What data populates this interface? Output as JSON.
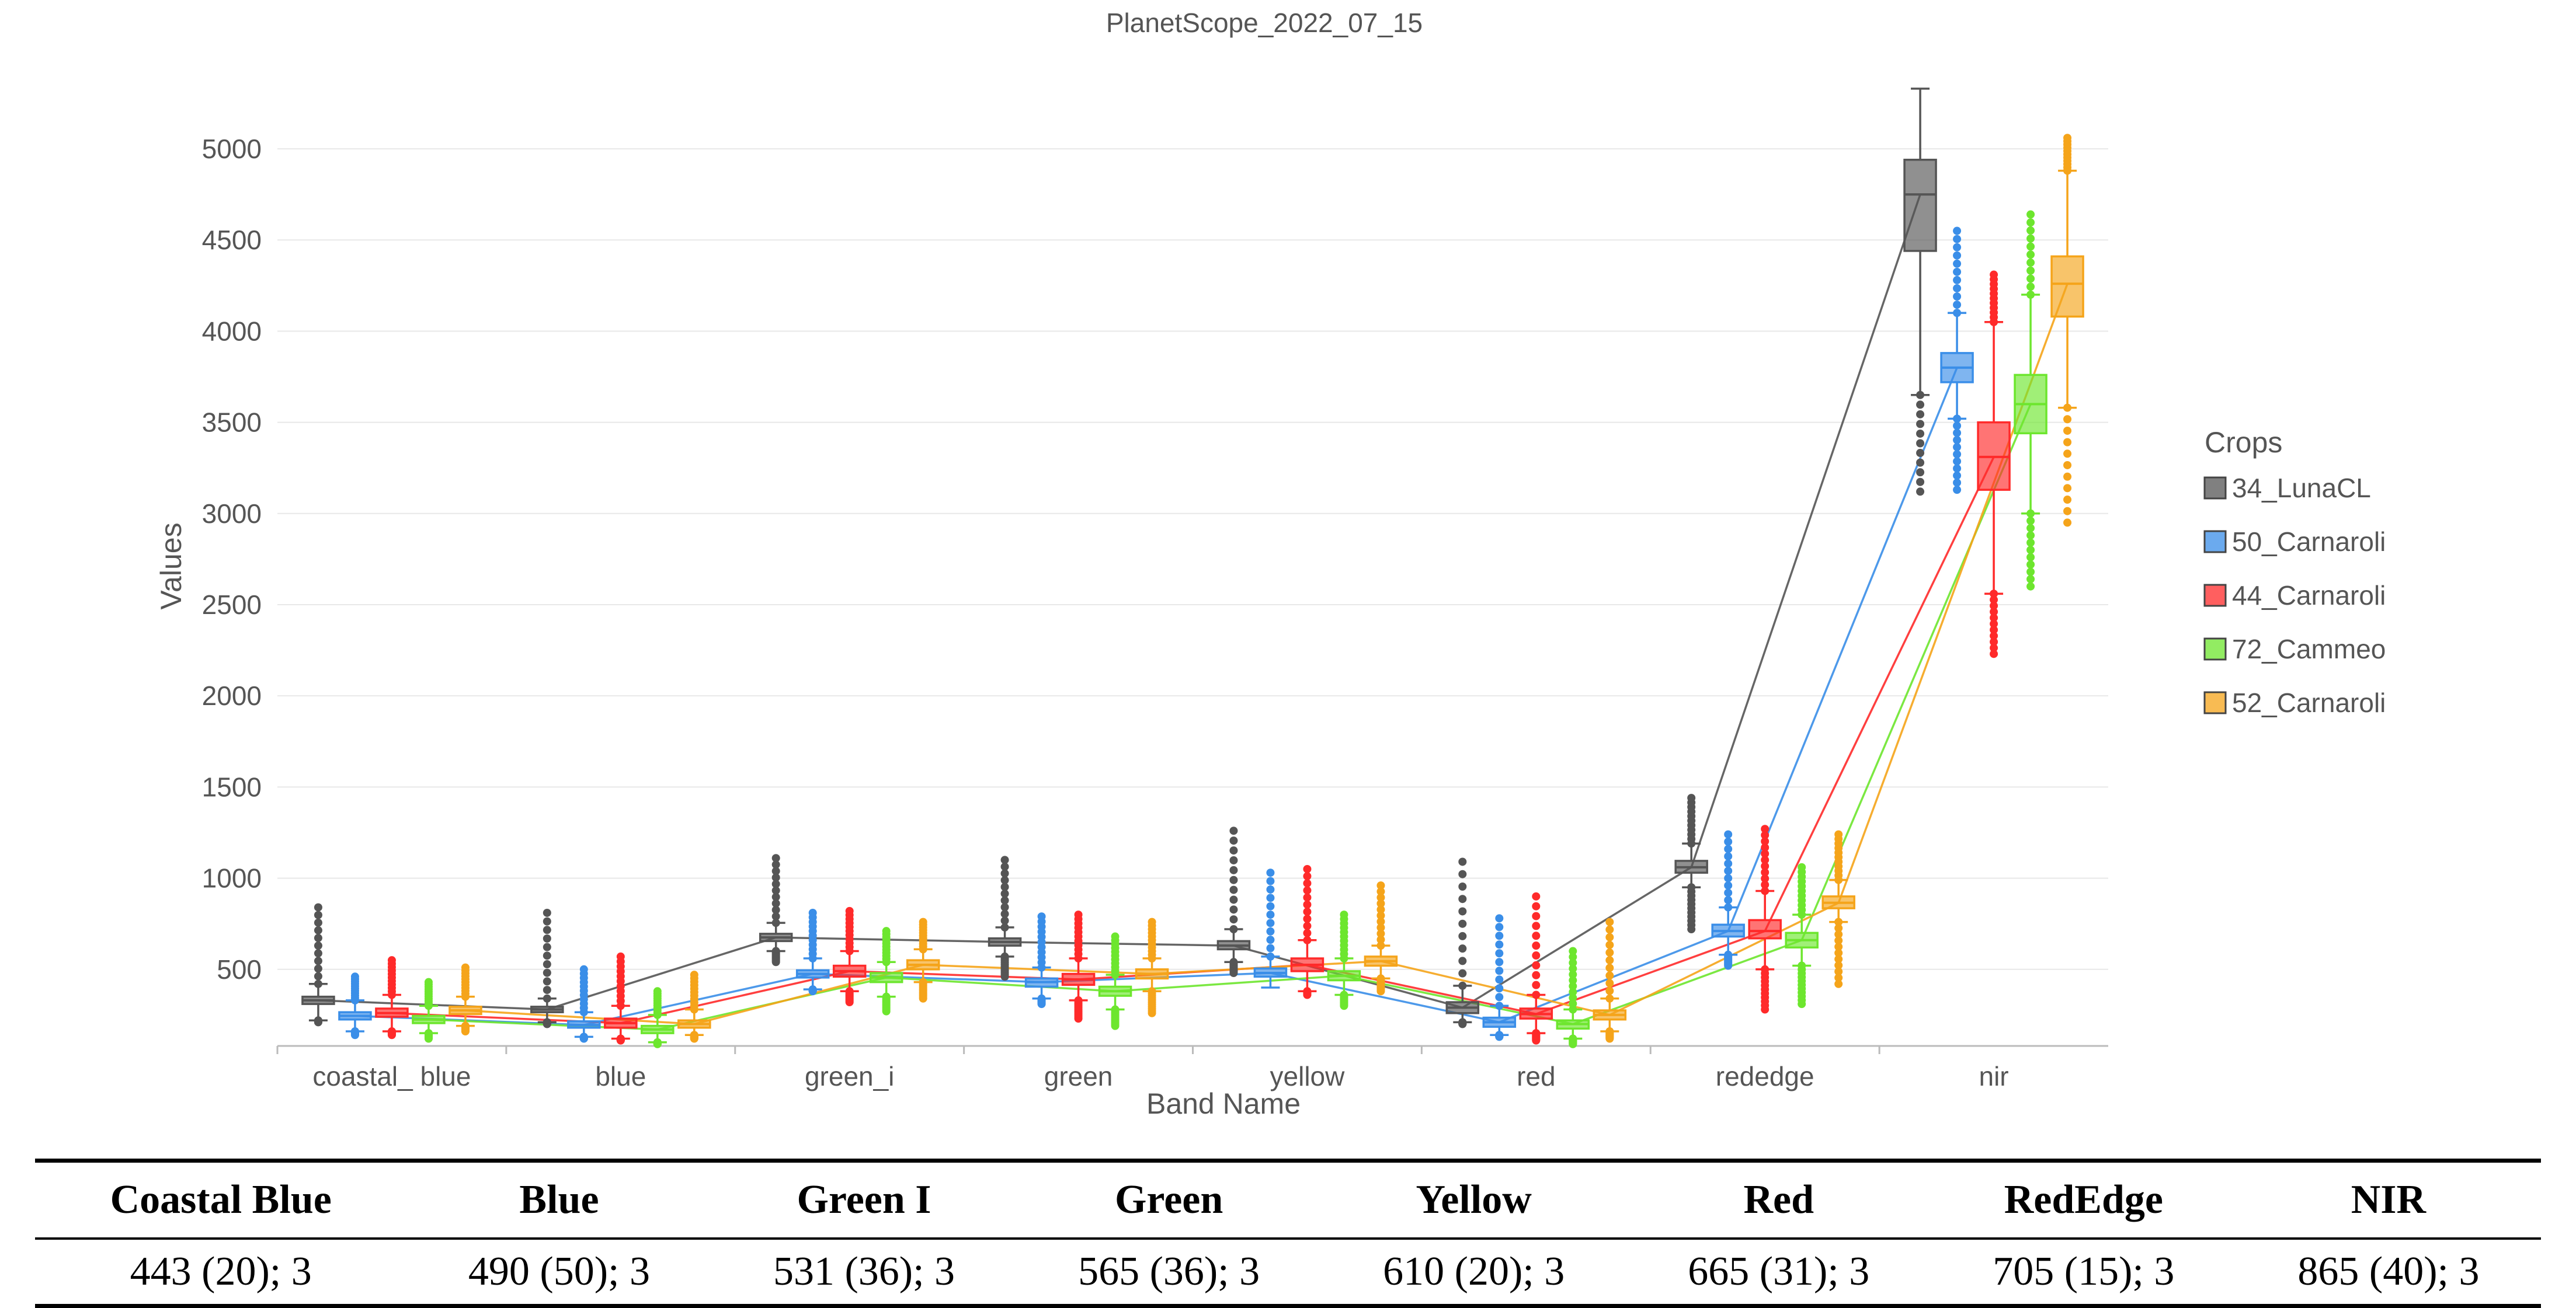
{
  "chart_data": {
    "type": "box",
    "title": "PlanetScope_2022_07_15",
    "xlabel": "Band Name",
    "ylabel": "Values",
    "ylim": [
      80,
      5400
    ],
    "yticks": [
      500,
      1000,
      1500,
      2000,
      2500,
      3000,
      3500,
      4000,
      4500,
      5000
    ],
    "grid": true,
    "legend_title": "Crops",
    "legend_position": "right",
    "categories": [
      "coastal_ blue",
      "blue",
      "green_i",
      "green",
      "yellow",
      "red",
      "rededge",
      "nir"
    ],
    "series": [
      {
        "name": "34_LunaCL",
        "color": "#555555",
        "boxes": [
          {
            "q1": 310,
            "median": 330,
            "q3": 350,
            "lo": 220,
            "hi": 420,
            "out_lo": 210,
            "out_hi": 840
          },
          {
            "q1": 265,
            "median": 280,
            "q3": 295,
            "lo": 210,
            "hi": 340,
            "out_lo": 200,
            "out_hi": 810
          },
          {
            "q1": 655,
            "median": 675,
            "q3": 695,
            "lo": 600,
            "hi": 755,
            "out_lo": 540,
            "out_hi": 1110
          },
          {
            "q1": 630,
            "median": 650,
            "q3": 670,
            "lo": 570,
            "hi": 730,
            "out_lo": 460,
            "out_hi": 1100
          },
          {
            "q1": 610,
            "median": 630,
            "q3": 655,
            "lo": 540,
            "hi": 720,
            "out_lo": 480,
            "out_hi": 1260
          },
          {
            "q1": 260,
            "median": 290,
            "q3": 320,
            "lo": 210,
            "hi": 410,
            "out_lo": 200,
            "out_hi": 1090
          },
          {
            "q1": 1030,
            "median": 1060,
            "q3": 1095,
            "lo": 950,
            "hi": 1190,
            "out_lo": 720,
            "out_hi": 1440
          },
          {
            "q1": 4440,
            "median": 4750,
            "q3": 4940,
            "lo": 3650,
            "hi": 5330,
            "out_lo": 3120,
            "out_hi": 5330
          }
        ]
      },
      {
        "name": "50_Carnaroli",
        "color": "#3a8ee8",
        "boxes": [
          {
            "q1": 225,
            "median": 245,
            "q3": 265,
            "lo": 160,
            "hi": 330,
            "out_lo": 140,
            "out_hi": 460
          },
          {
            "q1": 180,
            "median": 195,
            "q3": 215,
            "lo": 130,
            "hi": 265,
            "out_lo": 120,
            "out_hi": 500
          },
          {
            "q1": 455,
            "median": 475,
            "q3": 495,
            "lo": 390,
            "hi": 560,
            "out_lo": 380,
            "out_hi": 810
          },
          {
            "q1": 405,
            "median": 430,
            "q3": 450,
            "lo": 340,
            "hi": 510,
            "out_lo": 310,
            "out_hi": 790
          },
          {
            "q1": 460,
            "median": 480,
            "q3": 505,
            "lo": 400,
            "hi": 570,
            "out_lo": 400,
            "out_hi": 1030
          },
          {
            "q1": 185,
            "median": 210,
            "q3": 235,
            "lo": 140,
            "hi": 300,
            "out_lo": 130,
            "out_hi": 780
          },
          {
            "q1": 680,
            "median": 710,
            "q3": 745,
            "lo": 580,
            "hi": 840,
            "out_lo": 520,
            "out_hi": 1240
          },
          {
            "q1": 3720,
            "median": 3800,
            "q3": 3880,
            "lo": 3520,
            "hi": 4100,
            "out_lo": 3130,
            "out_hi": 4550
          }
        ]
      },
      {
        "name": "44_Carnaroli",
        "color": "#ff2a2a",
        "boxes": [
          {
            "q1": 240,
            "median": 260,
            "q3": 285,
            "lo": 160,
            "hi": 360,
            "out_lo": 140,
            "out_hi": 550
          },
          {
            "q1": 180,
            "median": 205,
            "q3": 230,
            "lo": 120,
            "hi": 300,
            "out_lo": 110,
            "out_hi": 570
          },
          {
            "q1": 460,
            "median": 490,
            "q3": 520,
            "lo": 380,
            "hi": 600,
            "out_lo": 320,
            "out_hi": 820
          },
          {
            "q1": 415,
            "median": 445,
            "q3": 475,
            "lo": 330,
            "hi": 560,
            "out_lo": 230,
            "out_hi": 800
          },
          {
            "q1": 490,
            "median": 525,
            "q3": 560,
            "lo": 380,
            "hi": 660,
            "out_lo": 360,
            "out_hi": 1050
          },
          {
            "q1": 230,
            "median": 255,
            "q3": 285,
            "lo": 150,
            "hi": 360,
            "out_lo": 110,
            "out_hi": 900
          },
          {
            "q1": 670,
            "median": 710,
            "q3": 770,
            "lo": 500,
            "hi": 930,
            "out_lo": 280,
            "out_hi": 1270
          },
          {
            "q1": 3130,
            "median": 3310,
            "q3": 3500,
            "lo": 2560,
            "hi": 4050,
            "out_lo": 2230,
            "out_hi": 4310
          }
        ]
      },
      {
        "name": "72_Cammeo",
        "color": "#6de62e",
        "boxes": [
          {
            "q1": 205,
            "median": 225,
            "q3": 245,
            "lo": 150,
            "hi": 300,
            "out_lo": 120,
            "out_hi": 430
          },
          {
            "q1": 150,
            "median": 170,
            "q3": 190,
            "lo": 100,
            "hi": 250,
            "out_lo": 90,
            "out_hi": 380
          },
          {
            "q1": 430,
            "median": 455,
            "q3": 480,
            "lo": 350,
            "hi": 540,
            "out_lo": 270,
            "out_hi": 710
          },
          {
            "q1": 355,
            "median": 380,
            "q3": 405,
            "lo": 280,
            "hi": 470,
            "out_lo": 190,
            "out_hi": 680
          },
          {
            "q1": 440,
            "median": 465,
            "q3": 490,
            "lo": 360,
            "hi": 560,
            "out_lo": 300,
            "out_hi": 800
          },
          {
            "q1": 175,
            "median": 200,
            "q3": 220,
            "lo": 120,
            "hi": 280,
            "out_lo": 90,
            "out_hi": 600
          },
          {
            "q1": 620,
            "median": 660,
            "q3": 700,
            "lo": 520,
            "hi": 800,
            "out_lo": 310,
            "out_hi": 1060
          },
          {
            "q1": 3440,
            "median": 3600,
            "q3": 3760,
            "lo": 3000,
            "hi": 4200,
            "out_lo": 2600,
            "out_hi": 4640
          }
        ]
      },
      {
        "name": "52_Carnaroli",
        "color": "#f5a41a",
        "boxes": [
          {
            "q1": 255,
            "median": 275,
            "q3": 295,
            "lo": 190,
            "hi": 350,
            "out_lo": 160,
            "out_hi": 510
          },
          {
            "q1": 180,
            "median": 200,
            "q3": 220,
            "lo": 140,
            "hi": 280,
            "out_lo": 120,
            "out_hi": 470
          },
          {
            "q1": 500,
            "median": 525,
            "q3": 550,
            "lo": 430,
            "hi": 610,
            "out_lo": 340,
            "out_hi": 760
          },
          {
            "q1": 450,
            "median": 475,
            "q3": 500,
            "lo": 380,
            "hi": 560,
            "out_lo": 260,
            "out_hi": 760
          },
          {
            "q1": 520,
            "median": 545,
            "q3": 570,
            "lo": 450,
            "hi": 630,
            "out_lo": 380,
            "out_hi": 960
          },
          {
            "q1": 225,
            "median": 250,
            "q3": 275,
            "lo": 160,
            "hi": 340,
            "out_lo": 120,
            "out_hi": 760
          },
          {
            "q1": 835,
            "median": 865,
            "q3": 900,
            "lo": 760,
            "hi": 990,
            "out_lo": 420,
            "out_hi": 1240
          },
          {
            "q1": 4080,
            "median": 4260,
            "q3": 4410,
            "lo": 3580,
            "hi": 4880,
            "out_lo": 2950,
            "out_hi": 5060
          }
        ]
      }
    ]
  },
  "table": {
    "headers": [
      "Coastal Blue",
      "Blue",
      "Green I",
      "Green",
      "Yellow",
      "Red",
      "RedEdge",
      "NIR"
    ],
    "values": [
      "443 (20); 3",
      "490 (50); 3",
      "531 (36); 3",
      "565 (36); 3",
      "610 (20); 3",
      "665 (31); 3",
      "705 (15); 3",
      "865 (40); 3"
    ]
  }
}
